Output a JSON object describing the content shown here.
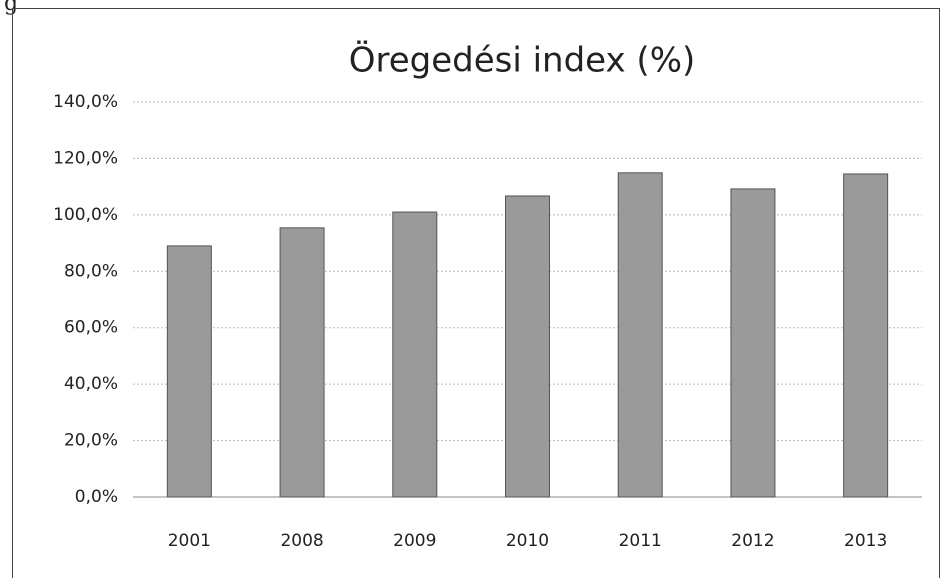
{
  "caption": "g",
  "chart_data": {
    "type": "bar",
    "title": "Öregedési index (%)",
    "categories": [
      "2001",
      "2008",
      "2009",
      "2010",
      "2011",
      "2012",
      "2013"
    ],
    "values": [
      89,
      95.4,
      101,
      106.7,
      114.9,
      109.2,
      114.5
    ],
    "color": "#9a9a9a",
    "ylim": [
      0,
      140
    ],
    "yticks": [
      {
        "value": 0,
        "label": "0,0%"
      },
      {
        "value": 20,
        "label": "20,0%"
      },
      {
        "value": 40,
        "label": "40,0%"
      },
      {
        "value": 60,
        "label": "60,0%"
      },
      {
        "value": 80,
        "label": "80,0%"
      },
      {
        "value": 100,
        "label": "100,0%"
      },
      {
        "value": 120,
        "label": "120,0%"
      },
      {
        "value": 140,
        "label": "140,0%"
      }
    ],
    "grid": true
  }
}
